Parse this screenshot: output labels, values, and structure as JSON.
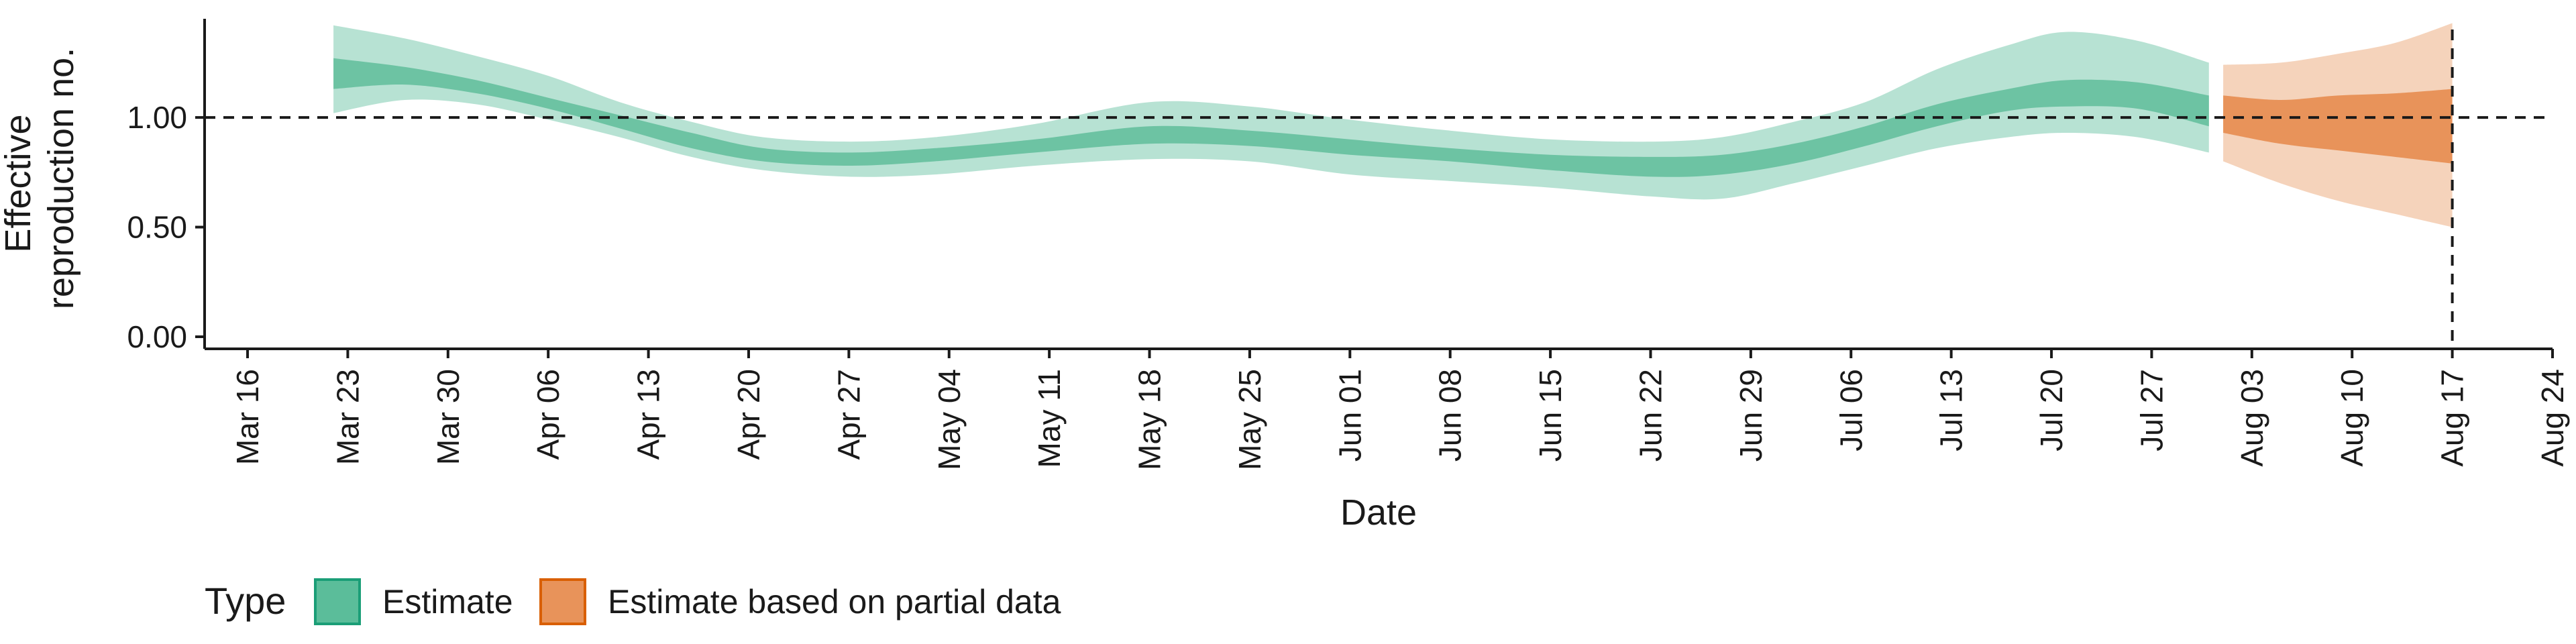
{
  "chart_data": {
    "type": "area",
    "xlabel": "Date",
    "ylabel_lines": [
      "Effective",
      "reproduction no."
    ],
    "ylim": [
      0,
      1.45
    ],
    "y_ticks": [
      {
        "value": 0.0,
        "label": "0.00"
      },
      {
        "value": 0.5,
        "label": "0.50"
      },
      {
        "value": 1.0,
        "label": "1.00"
      }
    ],
    "x_ticks": [
      {
        "date": "2020-03-16",
        "label": "Mar 16"
      },
      {
        "date": "2020-03-23",
        "label": "Mar 23"
      },
      {
        "date": "2020-03-30",
        "label": "Mar 30"
      },
      {
        "date": "2020-04-06",
        "label": "Apr 06"
      },
      {
        "date": "2020-04-13",
        "label": "Apr 13"
      },
      {
        "date": "2020-04-20",
        "label": "Apr 20"
      },
      {
        "date": "2020-04-27",
        "label": "Apr 27"
      },
      {
        "date": "2020-05-04",
        "label": "May 04"
      },
      {
        "date": "2020-05-11",
        "label": "May 11"
      },
      {
        "date": "2020-05-18",
        "label": "May 18"
      },
      {
        "date": "2020-05-25",
        "label": "May 25"
      },
      {
        "date": "2020-06-01",
        "label": "Jun 01"
      },
      {
        "date": "2020-06-08",
        "label": "Jun 08"
      },
      {
        "date": "2020-06-15",
        "label": "Jun 15"
      },
      {
        "date": "2020-06-22",
        "label": "Jun 22"
      },
      {
        "date": "2020-06-29",
        "label": "Jun 29"
      },
      {
        "date": "2020-07-06",
        "label": "Jul 06"
      },
      {
        "date": "2020-07-13",
        "label": "Jul 13"
      },
      {
        "date": "2020-07-20",
        "label": "Jul 20"
      },
      {
        "date": "2020-07-27",
        "label": "Jul 27"
      },
      {
        "date": "2020-08-03",
        "label": "Aug 03"
      },
      {
        "date": "2020-08-10",
        "label": "Aug 10"
      },
      {
        "date": "2020-08-17",
        "label": "Aug 17"
      },
      {
        "date": "2020-08-24",
        "label": "Aug 24"
      }
    ],
    "xlim": [
      "2020-03-13",
      "2020-08-24"
    ],
    "reference_line_y": 1.0,
    "reference_line_x": "2020-08-17",
    "legend": {
      "title": "Type",
      "position": "bottom-left",
      "entries": [
        {
          "label": "Estimate",
          "color": "#5bbd9a",
          "border": "#1b9e77"
        },
        {
          "label": "Estimate based on partial data",
          "color": "#e8935a",
          "border": "#d95f02"
        }
      ]
    },
    "series": [
      {
        "name": "Estimate",
        "color": "#1b9e77",
        "points": [
          {
            "date": "2020-03-22",
            "outer": [
              1.02,
              1.42
            ],
            "inner": [
              1.13,
              1.27
            ]
          },
          {
            "date": "2020-03-27",
            "outer": [
              1.08,
              1.36
            ],
            "inner": [
              1.15,
              1.23
            ]
          },
          {
            "date": "2020-04-01",
            "outer": [
              1.06,
              1.28
            ],
            "inner": [
              1.11,
              1.17
            ]
          },
          {
            "date": "2020-04-06",
            "outer": [
              0.99,
              1.19
            ],
            "inner": [
              1.04,
              1.09
            ]
          },
          {
            "date": "2020-04-11",
            "outer": [
              0.91,
              1.07
            ],
            "inner": [
              0.95,
              1.01
            ]
          },
          {
            "date": "2020-04-16",
            "outer": [
              0.82,
              0.98
            ],
            "inner": [
              0.86,
              0.93
            ]
          },
          {
            "date": "2020-04-21",
            "outer": [
              0.76,
              0.91
            ],
            "inner": [
              0.8,
              0.86
            ]
          },
          {
            "date": "2020-04-27",
            "outer": [
              0.73,
              0.89
            ],
            "inner": [
              0.78,
              0.84
            ]
          },
          {
            "date": "2020-05-03",
            "outer": [
              0.74,
              0.91
            ],
            "inner": [
              0.8,
              0.86
            ]
          },
          {
            "date": "2020-05-10",
            "outer": [
              0.78,
              0.97
            ],
            "inner": [
              0.84,
              0.9
            ]
          },
          {
            "date": "2020-05-18",
            "outer": [
              0.81,
              1.07
            ],
            "inner": [
              0.88,
              0.96
            ]
          },
          {
            "date": "2020-05-25",
            "outer": [
              0.8,
              1.05
            ],
            "inner": [
              0.87,
              0.94
            ]
          },
          {
            "date": "2020-06-01",
            "outer": [
              0.74,
              0.99
            ],
            "inner": [
              0.83,
              0.9
            ]
          },
          {
            "date": "2020-06-08",
            "outer": [
              0.71,
              0.94
            ],
            "inner": [
              0.8,
              0.86
            ]
          },
          {
            "date": "2020-06-15",
            "outer": [
              0.68,
              0.9
            ],
            "inner": [
              0.76,
              0.83
            ]
          },
          {
            "date": "2020-06-22",
            "outer": [
              0.64,
              0.89
            ],
            "inner": [
              0.73,
              0.82
            ]
          },
          {
            "date": "2020-06-27",
            "outer": [
              0.63,
              0.91
            ],
            "inner": [
              0.74,
              0.83
            ]
          },
          {
            "date": "2020-07-02",
            "outer": [
              0.7,
              0.98
            ],
            "inner": [
              0.79,
              0.88
            ]
          },
          {
            "date": "2020-07-07",
            "outer": [
              0.78,
              1.07
            ],
            "inner": [
              0.87,
              0.96
            ]
          },
          {
            "date": "2020-07-12",
            "outer": [
              0.86,
              1.22
            ],
            "inner": [
              0.96,
              1.06
            ]
          },
          {
            "date": "2020-07-17",
            "outer": [
              0.91,
              1.33
            ],
            "inner": [
              1.03,
              1.13
            ]
          },
          {
            "date": "2020-07-21",
            "outer": [
              0.93,
              1.39
            ],
            "inner": [
              1.05,
              1.17
            ]
          },
          {
            "date": "2020-07-26",
            "outer": [
              0.91,
              1.35
            ],
            "inner": [
              1.04,
              1.16
            ]
          },
          {
            "date": "2020-07-31",
            "outer": [
              0.84,
              1.25
            ],
            "inner": [
              0.96,
              1.1
            ]
          }
        ]
      },
      {
        "name": "Estimate based on partial data",
        "color": "#d95f02",
        "points": [
          {
            "date": "2020-08-01",
            "outer": [
              0.8,
              1.24
            ],
            "inner": [
              0.93,
              1.1
            ]
          },
          {
            "date": "2020-08-05",
            "outer": [
              0.7,
              1.25
            ],
            "inner": [
              0.88,
              1.08
            ]
          },
          {
            "date": "2020-08-09",
            "outer": [
              0.62,
              1.29
            ],
            "inner": [
              0.85,
              1.1
            ]
          },
          {
            "date": "2020-08-13",
            "outer": [
              0.56,
              1.34
            ],
            "inner": [
              0.82,
              1.11
            ]
          },
          {
            "date": "2020-08-17",
            "outer": [
              0.5,
              1.43
            ],
            "inner": [
              0.79,
              1.13
            ]
          }
        ]
      }
    ]
  }
}
